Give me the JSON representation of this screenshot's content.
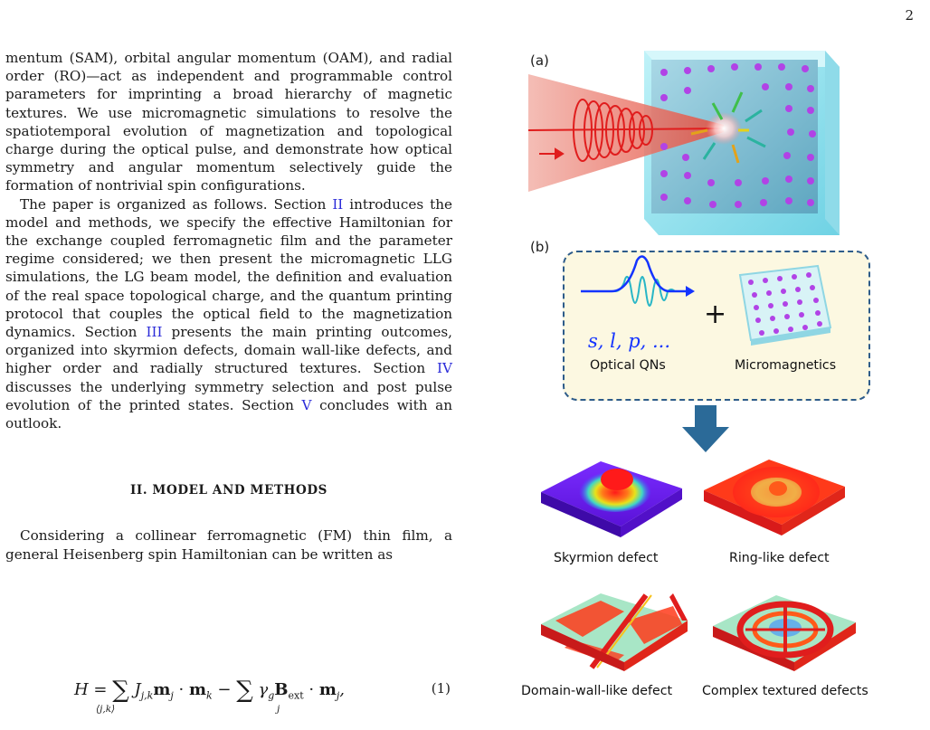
{
  "page_number": "2",
  "paragraph_1": "mentum (SAM), orbital angular momentum (OAM), and radial order (RO)—act as independent and programmable control parameters for imprinting a broad hierarchy of magnetic textures. We use micromagnetic simulations to resolve the spatiotemporal evolution of magnetization and topological charge during the optical pulse, and demonstrate how optical symmetry and angular momentum selectively guide the formation of nontrivial spin configurations.",
  "paragraph_2": {
    "t1": "The paper is organized as follows. Section ",
    "ref1": "II",
    "t2": " introduces the model and methods, we specify the effective Hamiltonian for the exchange coupled ferromagnetic film and the parameter regime considered; we then present the micromagnetic LLG simulations, the LG beam model, the definition and evaluation of the real space topological charge, and the quantum printing protocol that couples the optical field to the magnetization dynamics. Section ",
    "ref2": "III",
    "t3": " presents the main printing outcomes, organized into skyrmion defects, domain wall-like defects, and higher order and radially structured textures. Section ",
    "ref3": "IV",
    "t4": " discusses the underlying symmetry selection and post pulse evolution of the printed states. Section ",
    "ref4": "V",
    "t5": " concludes with an outlook."
  },
  "section_heading": "II.   MODEL AND METHODS",
  "paragraph_3": "Considering a collinear ferromagnetic (FM) thin film, a general Heisenberg spin Hamiltonian can be written as",
  "equation": {
    "number": "(1)",
    "sum_sub_1": "⟨j,k⟩",
    "sum_sub_2": "j"
  },
  "figure": {
    "label_a": "(a)",
    "label_b": "(b)",
    "qn_symbols": "s, l, p, ...",
    "optical_qns": "Optical QNs",
    "plus": "+",
    "micromagnetics": "Micromagnetics",
    "captions": {
      "skyrmion": "Skyrmion defect",
      "ring": "Ring-like defect",
      "domain_wall": "Domain-wall-like defect",
      "complex": "Complex textured defects"
    }
  },
  "colors": {
    "reference": "#2b2bd8",
    "box_border": "#2e5c8a",
    "box_fill": "#fcf8e1",
    "arrow": "#2b6a98",
    "qn_text": "#1434ff"
  }
}
